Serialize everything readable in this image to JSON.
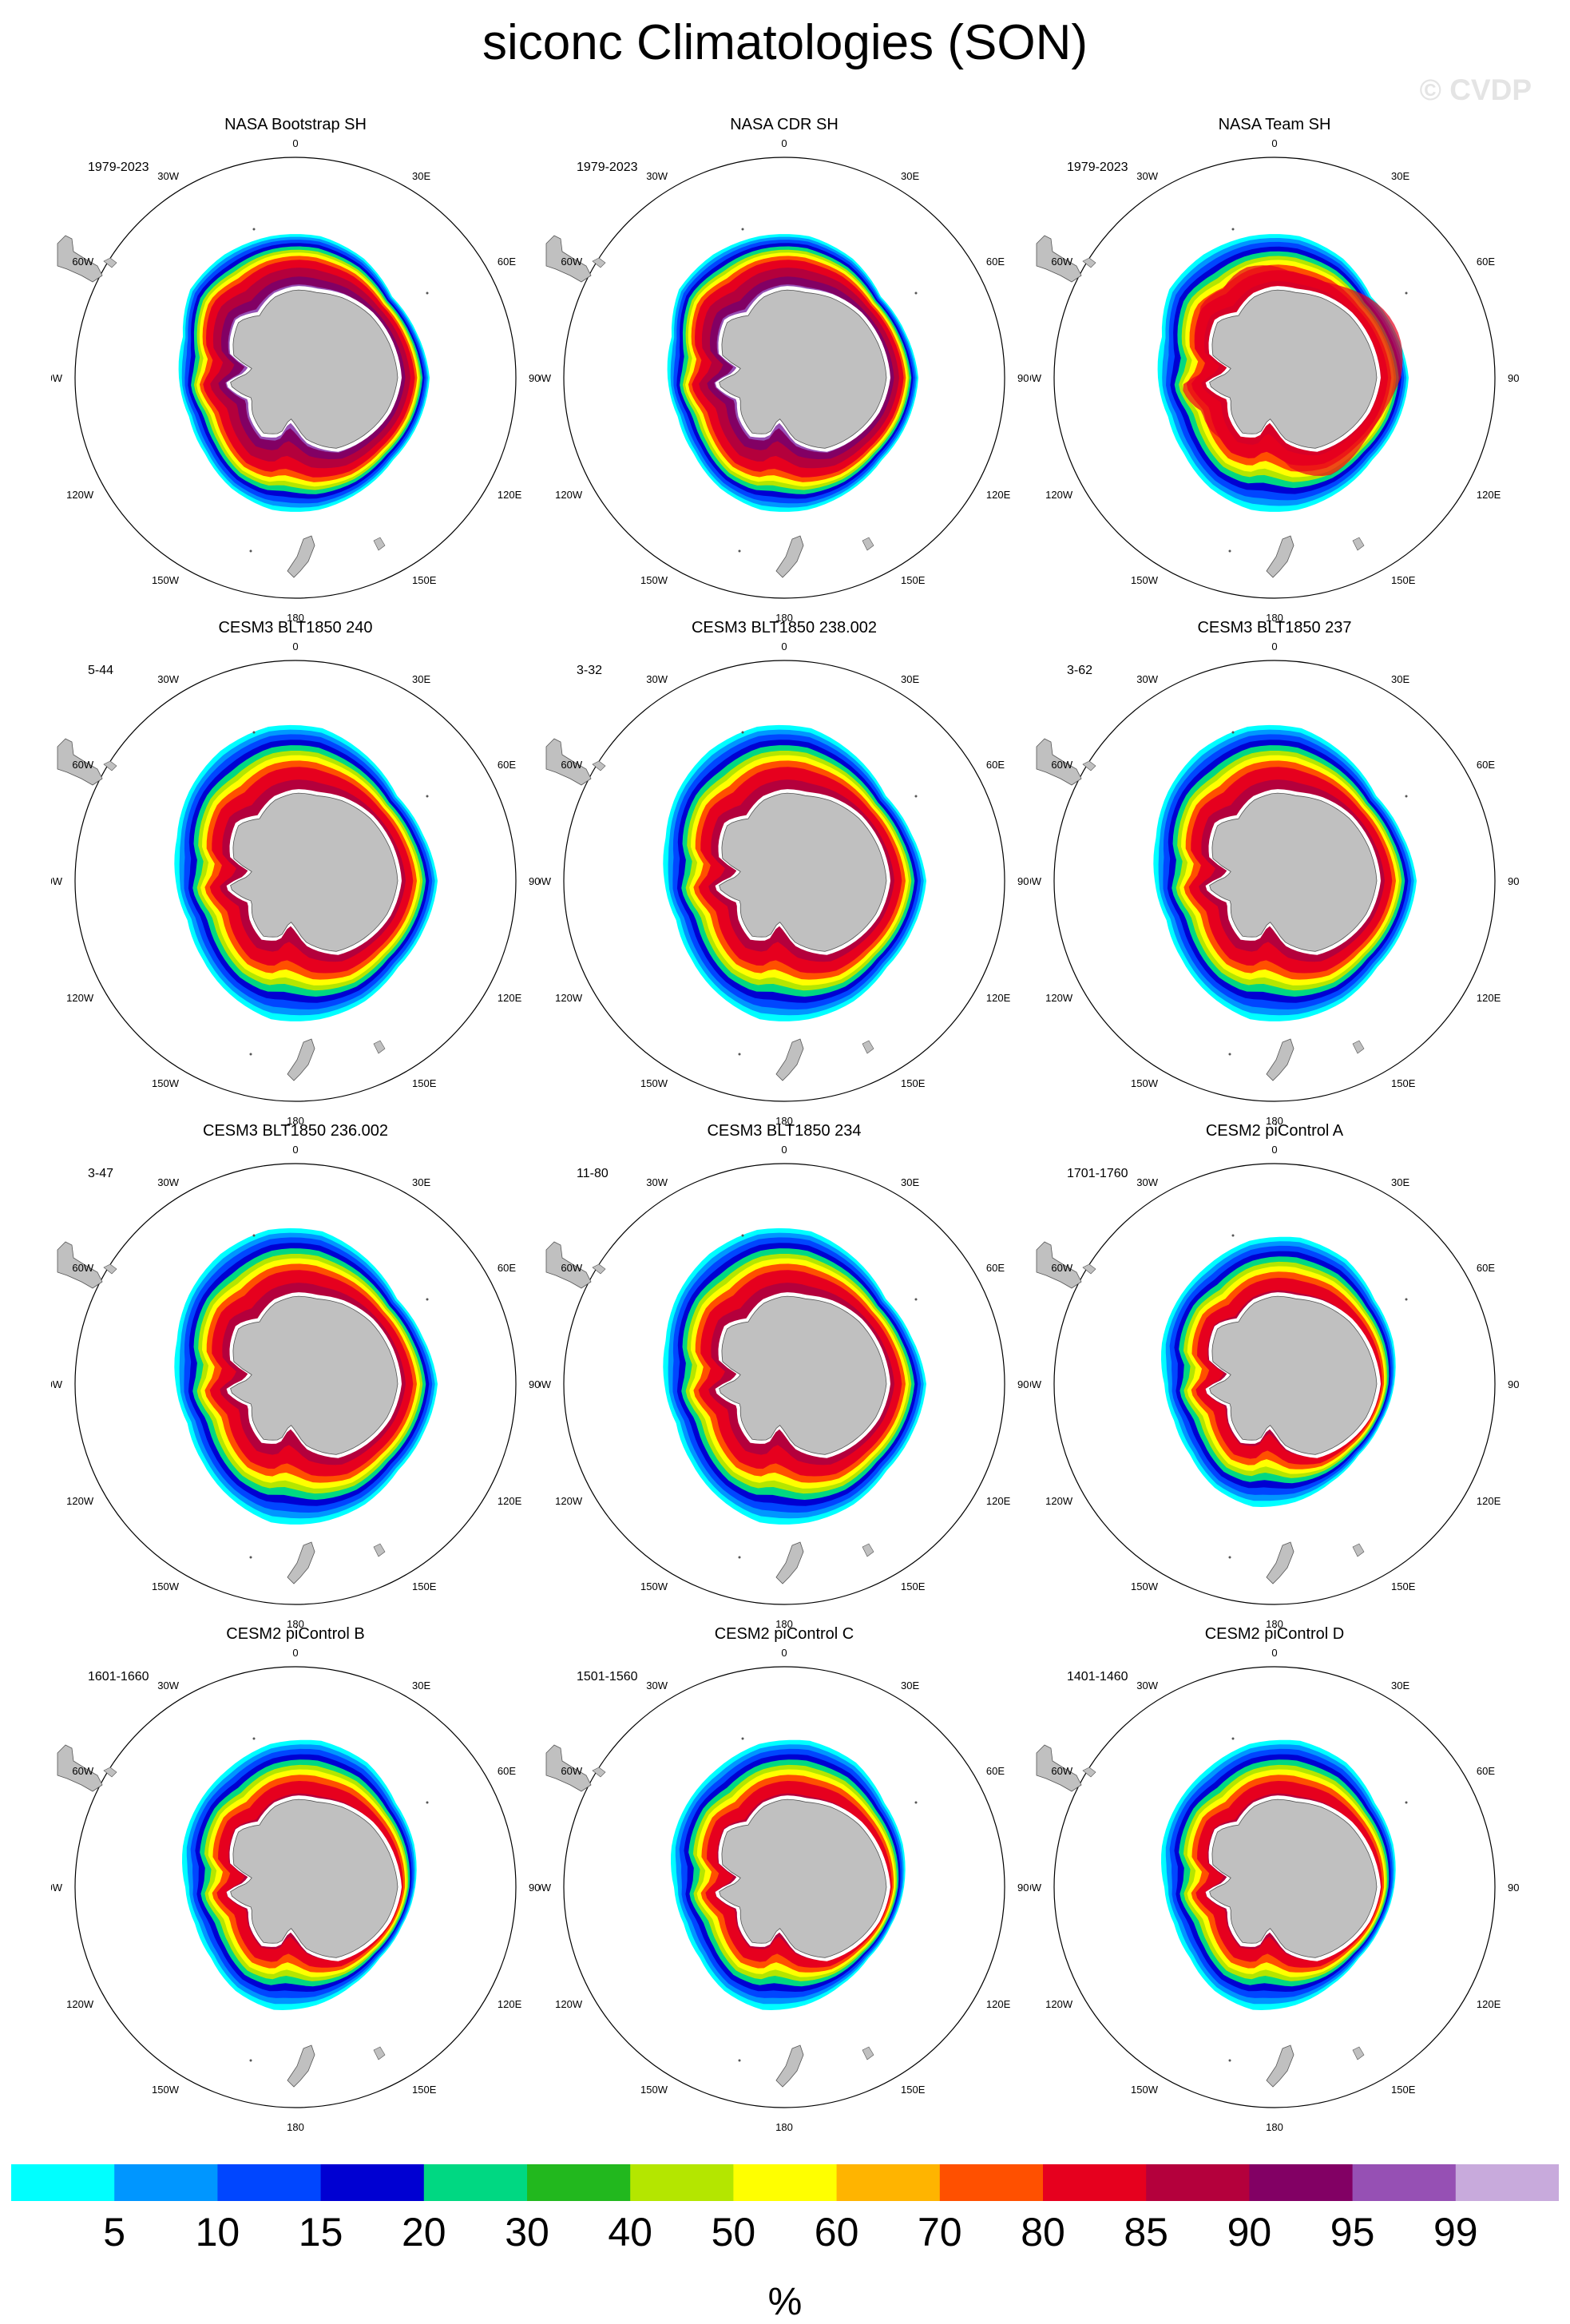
{
  "title": "siconc Climatologies (SON)",
  "watermark": "© CVDP",
  "map_labels": {
    "lon_0": "0",
    "lon_30e": "30E",
    "lon_60e": "60E",
    "lon_90e": "90E",
    "lon_120e": "120E",
    "lon_150e": "150E",
    "lon_180": "180",
    "lon_150w": "150W",
    "lon_120w": "120W",
    "lon_90w": "90W",
    "lon_60w": "60W",
    "lon_30w": "30W"
  },
  "panels": [
    {
      "title": "NASA Bootstrap SH",
      "period": "1979-2023"
    },
    {
      "title": "NASA CDR SH",
      "period": "1979-2023"
    },
    {
      "title": "NASA Team SH",
      "period": "1979-2023"
    },
    {
      "title": "CESM3 BLT1850 240",
      "period": "5-44"
    },
    {
      "title": "CESM3 BLT1850 238.002",
      "period": "3-32"
    },
    {
      "title": "CESM3 BLT1850 237",
      "period": "3-62"
    },
    {
      "title": "CESM3 BLT1850 236.002",
      "period": "3-47"
    },
    {
      "title": "CESM3 BLT1850 234",
      "period": "11-80"
    },
    {
      "title": "CESM2 piControl A",
      "period": "1701-1760"
    },
    {
      "title": "CESM2 piControl B",
      "period": "1601-1660"
    },
    {
      "title": "CESM2 piControl C",
      "period": "1501-1560"
    },
    {
      "title": "CESM2 piControl D",
      "period": "1401-1460"
    }
  ],
  "colorbar": {
    "unit": "%",
    "labels": [
      "5",
      "10",
      "15",
      "20",
      "30",
      "40",
      "50",
      "60",
      "70",
      "80",
      "85",
      "90",
      "95",
      "99"
    ],
    "colors": [
      "#00ffff",
      "#0096ff",
      "#0046ff",
      "#0000d2",
      "#00d882",
      "#22b81e",
      "#b4e600",
      "#ffff00",
      "#ffb400",
      "#ff5000",
      "#e6001e",
      "#b4003c",
      "#820064",
      "#9650b4",
      "#c8aadc"
    ]
  },
  "colors": {
    "land": "#c0c0c0",
    "land_outline": "#555555",
    "frame": "#000000"
  }
}
